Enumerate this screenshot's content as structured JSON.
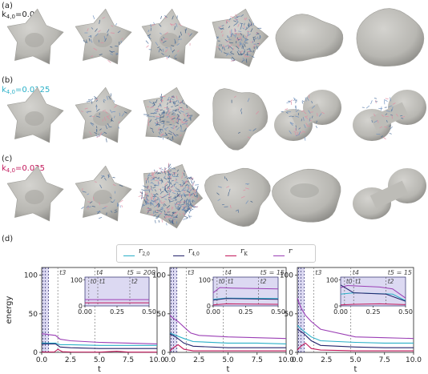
{
  "rows": [
    {
      "letter": "(a)",
      "k_label": "k",
      "k_sub": "4,0",
      "k_value": "=0.0",
      "color": "#111111"
    },
    {
      "letter": "(b)",
      "k_label": "k",
      "k_sub": "4,0",
      "k_value": "=0.0125",
      "color": "#2ab0c8"
    },
    {
      "letter": "(c)",
      "k_label": "k",
      "k_sub": "4,0",
      "k_value": "=0.025",
      "color": "#c2185b"
    }
  ],
  "panel_d_letter": "(d)",
  "legend": [
    {
      "name": "r",
      "sub": "2,0",
      "color": "#2ab0c8"
    },
    {
      "name": "r",
      "sub": "4,0",
      "color": "#24236b"
    },
    {
      "name": "r",
      "sub": "K",
      "color": "#c2185b"
    },
    {
      "name": "r",
      "sub": "",
      "color": "#9b3fb5"
    }
  ],
  "colors": {
    "shape_fill": "#c4c3be",
    "shape_shade": "#8f8e8a",
    "inset_bg": "#dcd9f2",
    "inset_border": "#2a2a6a",
    "arrow_blue": "#4b6e9c",
    "arrow_pink": "#e08aa0"
  },
  "chart_data": [
    {
      "type": "line",
      "ylabel": "energy",
      "xlabel": "t",
      "xlim": [
        0,
        10
      ],
      "ylim": [
        0,
        110
      ],
      "xticks": [
        "0.0",
        "2.5",
        "5.0",
        "7.5",
        "10.0"
      ],
      "yticks": [
        "0",
        "50",
        "100"
      ],
      "vlines": [
        {
          "label": "t0",
          "x": 0.1
        },
        {
          "label": "t1",
          "x": 0.3
        },
        {
          "label": "t2",
          "x": 0.6
        },
        {
          "label": "t3",
          "x": 1.4
        },
        {
          "label": "t4",
          "x": 4.6
        },
        {
          "label": "t5 = 200",
          "x": 10
        }
      ],
      "labels_text": [
        "t3",
        "t4",
        "t5 = 200"
      ],
      "series": [
        {
          "name": "r",
          "x": [
            0,
            0.2,
            0.6,
            1.2,
            1.6,
            2.5,
            5,
            7.5,
            10
          ],
          "y": [
            24,
            24,
            23,
            22,
            17,
            15,
            13,
            12,
            11
          ]
        },
        {
          "name": "r2,0",
          "x": [
            0,
            1.2,
            1.6,
            2.5,
            5,
            7.5,
            10
          ],
          "y": [
            12,
            12,
            10,
            10,
            9,
            9,
            9
          ]
        },
        {
          "name": "r4,0",
          "x": [
            0,
            1.2,
            1.6,
            2.5,
            5,
            7.5,
            10
          ],
          "y": [
            11,
            11,
            7,
            6,
            5,
            5,
            5
          ]
        },
        {
          "name": "rK",
          "x": [
            0,
            1.1,
            1.4,
            1.8,
            2.5,
            5,
            6.5,
            7.5,
            10
          ],
          "y": [
            0.5,
            0.5,
            4,
            0.8,
            0.5,
            0.3,
            1.5,
            0.3,
            0.3
          ]
        }
      ],
      "inset": {
        "xlim": [
          0,
          0.5
        ],
        "ylim": [
          0,
          110
        ],
        "xticks": [
          "0.00",
          "0.25",
          "0.50"
        ],
        "yticks": [
          "0",
          "100"
        ],
        "vlines": [
          {
            "label": "t0",
            "x": 0.03
          },
          {
            "label": "t1",
            "x": 0.1
          },
          {
            "label": "t2",
            "x": 0.35
          }
        ],
        "labels_text": [
          "t0",
          "t1",
          "t2"
        ],
        "series": [
          {
            "name": "r",
            "x": [
              0,
              0.5
            ],
            "y": [
              24,
              24
            ]
          },
          {
            "name": "rK",
            "x": [
              0,
              0.5
            ],
            "y": [
              12,
              12
            ]
          }
        ]
      }
    },
    {
      "type": "line",
      "xlabel": "t",
      "xlim": [
        0,
        10
      ],
      "ylim": [
        0,
        110
      ],
      "xticks": [
        "0.0",
        "2.5",
        "5.0",
        "7.5",
        "10.0"
      ],
      "yticks": [
        "0",
        "50",
        "100"
      ],
      "vlines": [
        {
          "label": "t0",
          "x": 0.1
        },
        {
          "label": "t1",
          "x": 0.3
        },
        {
          "label": "t2",
          "x": 0.6
        },
        {
          "label": "t3",
          "x": 1.4
        },
        {
          "label": "t4",
          "x": 4.6
        },
        {
          "label": "t5 = 15",
          "x": 10
        }
      ],
      "labels_text": [
        "t3",
        "t4",
        "t5 = 15"
      ],
      "series": [
        {
          "name": "r",
          "x": [
            0,
            0.3,
            0.7,
            1.2,
            1.8,
            2.5,
            5,
            7.5,
            10
          ],
          "y": [
            48,
            44,
            40,
            33,
            25,
            22,
            20,
            19,
            18
          ]
        },
        {
          "name": "r2,0",
          "x": [
            0,
            0.5,
            1.2,
            2,
            5,
            7.5,
            10
          ],
          "y": [
            25,
            22,
            18,
            14,
            12,
            12,
            11
          ]
        },
        {
          "name": "r4,0",
          "x": [
            0,
            0.5,
            1.2,
            2,
            5,
            7.5,
            10
          ],
          "y": [
            24,
            20,
            12,
            8,
            6,
            6,
            6
          ]
        },
        {
          "name": "rK",
          "x": [
            0,
            0.3,
            0.7,
            1.2,
            2,
            5,
            7.5,
            10
          ],
          "y": [
            2,
            6,
            10,
            4,
            2,
            2,
            2,
            2
          ]
        }
      ],
      "inset": {
        "xlim": [
          0,
          0.5
        ],
        "ylim": [
          0,
          110
        ],
        "xticks": [
          "0.00",
          "0.25",
          "0.50"
        ],
        "yticks": [
          "0",
          "100"
        ],
        "vlines": [
          {
            "label": "t0",
            "x": 0.03
          },
          {
            "label": "t1",
            "x": 0.1
          },
          {
            "label": "t2",
            "x": 0.35
          }
        ],
        "labels_text": [
          "t0",
          "t1",
          "t2"
        ],
        "series": [
          {
            "name": "r",
            "x": [
              0,
              0.05,
              0.15,
              0.5
            ],
            "y": [
              50,
              70,
              68,
              65
            ]
          },
          {
            "name": "r2,0",
            "x": [
              0,
              0.1,
              0.5
            ],
            "y": [
              25,
              30,
              28
            ]
          },
          {
            "name": "r4,0",
            "x": [
              0,
              0.1,
              0.5
            ],
            "y": [
              22,
              28,
              25
            ]
          },
          {
            "name": "rK",
            "x": [
              0,
              0.1,
              0.5
            ],
            "y": [
              4,
              8,
              6
            ]
          }
        ]
      }
    },
    {
      "type": "line",
      "xlabel": "t",
      "xlim": [
        0,
        10
      ],
      "ylim": [
        0,
        110
      ],
      "xticks": [
        "0.0",
        "2.5",
        "5.0",
        "7.5",
        "10.0"
      ],
      "yticks": [
        "0",
        "50",
        "100"
      ],
      "vlines": [
        {
          "label": "t0",
          "x": 0.1
        },
        {
          "label": "t1",
          "x": 0.3
        },
        {
          "label": "t2",
          "x": 0.6
        },
        {
          "label": "t3",
          "x": 1.4
        },
        {
          "label": "t4",
          "x": 4.6
        },
        {
          "label": "t5 = 15",
          "x": 10
        }
      ],
      "labels_text": [
        "t3",
        "t4",
        "t5 = 15"
      ],
      "series": [
        {
          "name": "r",
          "x": [
            0,
            0.3,
            0.7,
            1.2,
            2,
            5,
            7.5,
            10
          ],
          "y": [
            70,
            58,
            48,
            40,
            30,
            20,
            19,
            18
          ]
        },
        {
          "name": "r2,0",
          "x": [
            0,
            0.5,
            1.2,
            2,
            5,
            7.5,
            10
          ],
          "y": [
            35,
            28,
            20,
            15,
            13,
            12,
            12
          ]
        },
        {
          "name": "r4,0",
          "x": [
            0,
            0.5,
            1.2,
            2,
            5,
            7.5,
            10
          ],
          "y": [
            30,
            25,
            15,
            9,
            7,
            6,
            6
          ]
        },
        {
          "name": "rK",
          "x": [
            0,
            0.3,
            0.7,
            1.2,
            2,
            5,
            7.5,
            10
          ],
          "y": [
            3,
            8,
            12,
            5,
            3,
            2,
            2,
            2
          ]
        }
      ],
      "inset": {
        "xlim": [
          0,
          0.5
        ],
        "ylim": [
          0,
          110
        ],
        "xticks": [
          "0.00",
          "0.25",
          "0.50"
        ],
        "yticks": [
          "0",
          "100"
        ],
        "vlines": [
          {
            "label": "t0",
            "x": 0.03
          },
          {
            "label": "t1",
            "x": 0.1
          },
          {
            "label": "t2",
            "x": 0.35
          }
        ],
        "labels_text": [
          "t0",
          "t1",
          "t2"
        ],
        "series": [
          {
            "name": "r",
            "x": [
              0,
              0.05,
              0.3,
              0.4,
              0.5
            ],
            "y": [
              70,
              78,
              72,
              65,
              30
            ]
          },
          {
            "name": "r2,0",
            "x": [
              0,
              0.1,
              0.4,
              0.5
            ],
            "y": [
              45,
              50,
              45,
              20
            ]
          },
          {
            "name": "r4,0",
            "x": [
              0,
              0.1,
              0.35,
              0.5
            ],
            "y": [
              80,
              50,
              45,
              18
            ]
          },
          {
            "name": "rK",
            "x": [
              0,
              0.1,
              0.3,
              0.5
            ],
            "y": [
              4,
              6,
              8,
              5
            ]
          }
        ]
      }
    }
  ]
}
